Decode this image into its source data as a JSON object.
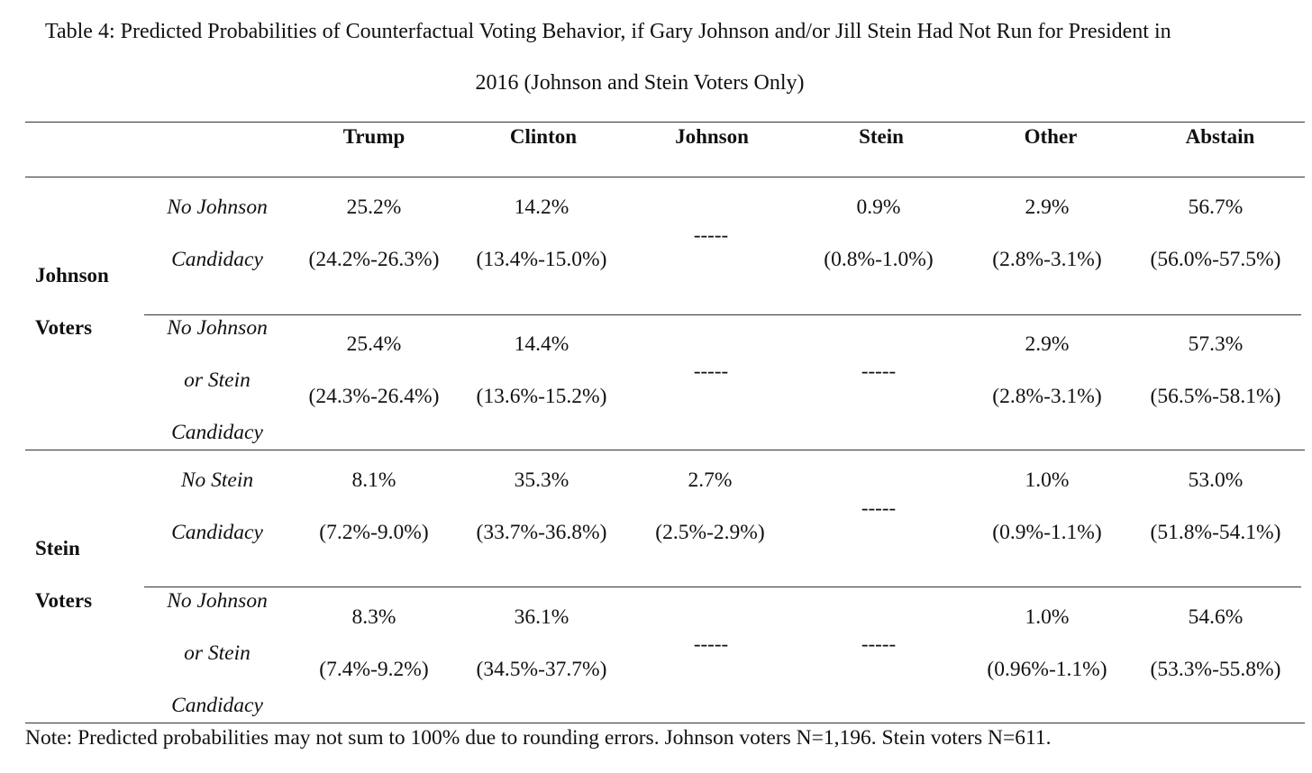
{
  "title": {
    "line1": "Table 4: Predicted Probabilities of Counterfactual Voting Behavior, if Gary Johnson and/or Jill Stein Had Not Run for President in",
    "line2": "2016 (Johnson and Stein Voters Only)"
  },
  "columns": [
    "Trump",
    "Clinton",
    "Johnson",
    "Stein",
    "Other",
    "Abstain"
  ],
  "groups": [
    {
      "label_line1": "Johnson",
      "label_line2": "Voters",
      "rows": [
        {
          "condition": [
            "No Johnson",
            "Candidacy"
          ],
          "cells": [
            {
              "value": "25.2%",
              "ci": "(24.2%-26.3%)"
            },
            {
              "value": "14.2%",
              "ci": "(13.4%-15.0%)"
            },
            {
              "dash": "-----"
            },
            {
              "value": "0.9%",
              "ci": "(0.8%-1.0%)"
            },
            {
              "value": "2.9%",
              "ci": "(2.8%-3.1%)"
            },
            {
              "value": "56.7%",
              "ci": "(56.0%-57.5%)"
            }
          ]
        },
        {
          "condition": [
            "No Johnson",
            "or Stein",
            "Candidacy"
          ],
          "cells": [
            {
              "value": "25.4%",
              "ci": "(24.3%-26.4%)"
            },
            {
              "value": "14.4%",
              "ci": "(13.6%-15.2%)"
            },
            {
              "dash": "-----"
            },
            {
              "dash": "-----"
            },
            {
              "value": "2.9%",
              "ci": "(2.8%-3.1%)"
            },
            {
              "value": "57.3%",
              "ci": "(56.5%-58.1%)"
            }
          ]
        }
      ]
    },
    {
      "label_line1": "Stein",
      "label_line2": "Voters",
      "rows": [
        {
          "condition": [
            "No Stein",
            "Candidacy"
          ],
          "cells": [
            {
              "value": "8.1%",
              "ci": "(7.2%-9.0%)"
            },
            {
              "value": "35.3%",
              "ci": "(33.7%-36.8%)"
            },
            {
              "value": "2.7%",
              "ci": "(2.5%-2.9%)"
            },
            {
              "dash": "-----"
            },
            {
              "value": "1.0%",
              "ci": "(0.9%-1.1%)"
            },
            {
              "value": "53.0%",
              "ci": "(51.8%-54.1%)"
            }
          ]
        },
        {
          "condition": [
            "No Johnson",
            "or Stein",
            "Candidacy"
          ],
          "cells": [
            {
              "value": "8.3%",
              "ci": "(7.4%-9.2%)"
            },
            {
              "value": "36.1%",
              "ci": "(34.5%-37.7%)"
            },
            {
              "dash": "-----"
            },
            {
              "dash": "-----"
            },
            {
              "value": "1.0%",
              "ci": "(0.96%-1.1%)"
            },
            {
              "value": "54.6%",
              "ci": "(53.3%-55.8%)"
            }
          ]
        }
      ]
    }
  ],
  "note": "Note:  Predicted probabilities may not sum to 100% due to rounding errors.  Johnson voters N=1,196.  Stein voters N=611."
}
